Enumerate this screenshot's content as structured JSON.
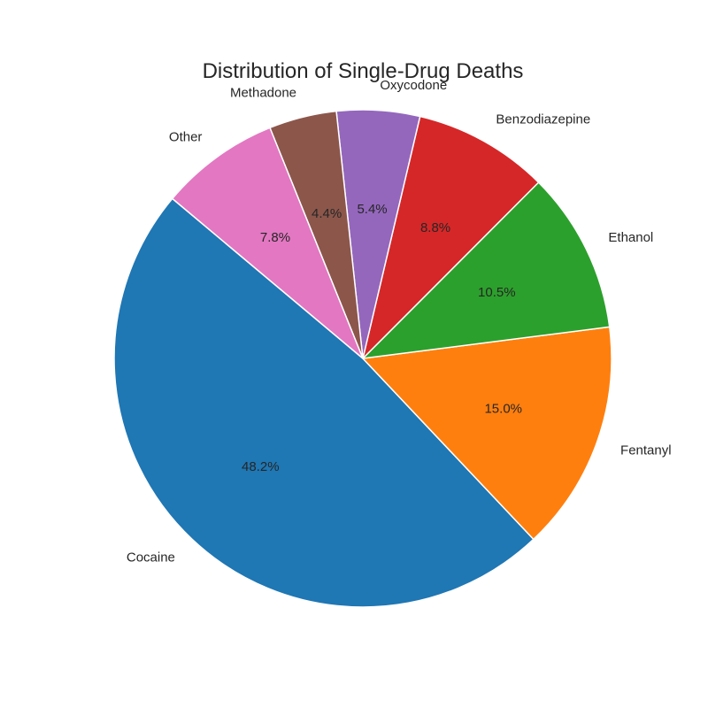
{
  "chart_data": {
    "type": "pie",
    "title": "Distribution of Single-Drug Deaths",
    "start_angle_deg": 140,
    "direction": "counterclockwise",
    "slices": [
      {
        "label": "Cocaine",
        "value": 48.2,
        "pct_label": "48.2%",
        "color": "#1f77b4"
      },
      {
        "label": "Fentanyl",
        "value": 15.0,
        "pct_label": "15.0%",
        "color": "#ff7f0e"
      },
      {
        "label": "Ethanol",
        "value": 10.5,
        "pct_label": "10.5%",
        "color": "#2ca02c"
      },
      {
        "label": "Benzodiazepine",
        "value": 8.8,
        "pct_label": "8.8%",
        "color": "#d62728"
      },
      {
        "label": "Oxycodone",
        "value": 5.4,
        "pct_label": "5.4%",
        "color": "#9467bd"
      },
      {
        "label": "Methadone",
        "value": 4.4,
        "pct_label": "4.4%",
        "color": "#8c564b"
      },
      {
        "label": "Other",
        "value": 7.8,
        "pct_label": "7.8%",
        "color": "#e377c2"
      }
    ]
  }
}
